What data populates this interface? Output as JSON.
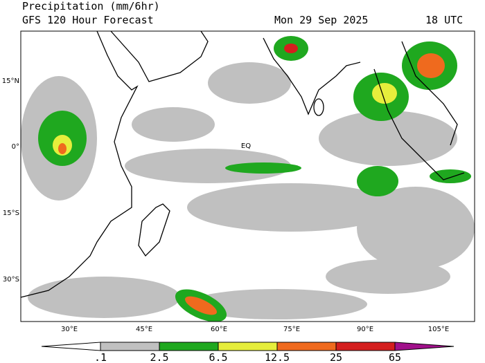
{
  "header": {
    "title": "Precipitation (mm/6hr)",
    "subtitle": "GFS 120 Hour Forecast",
    "date": "Mon 29 Sep 2025",
    "time": "18 UTC"
  },
  "map": {
    "lat_labels": [
      "15°N",
      "0°",
      "15°S",
      "30°S"
    ],
    "lon_labels": [
      "30°E",
      "45°E",
      "60°E",
      "75°E",
      "90°E",
      "105°E"
    ],
    "equator_label": "EQ"
  },
  "colorbar": {
    "levels": [
      {
        "value": 0.1,
        "label": ".1"
      },
      2.5,
      6.5,
      12.5,
      25,
      65
    ],
    "colors": [
      "#ffffff",
      "#c0c0c0",
      "#1fa81f",
      "#e6ee3c",
      "#ef6a1e",
      "#d41e1e",
      "#a0108a"
    ]
  }
}
